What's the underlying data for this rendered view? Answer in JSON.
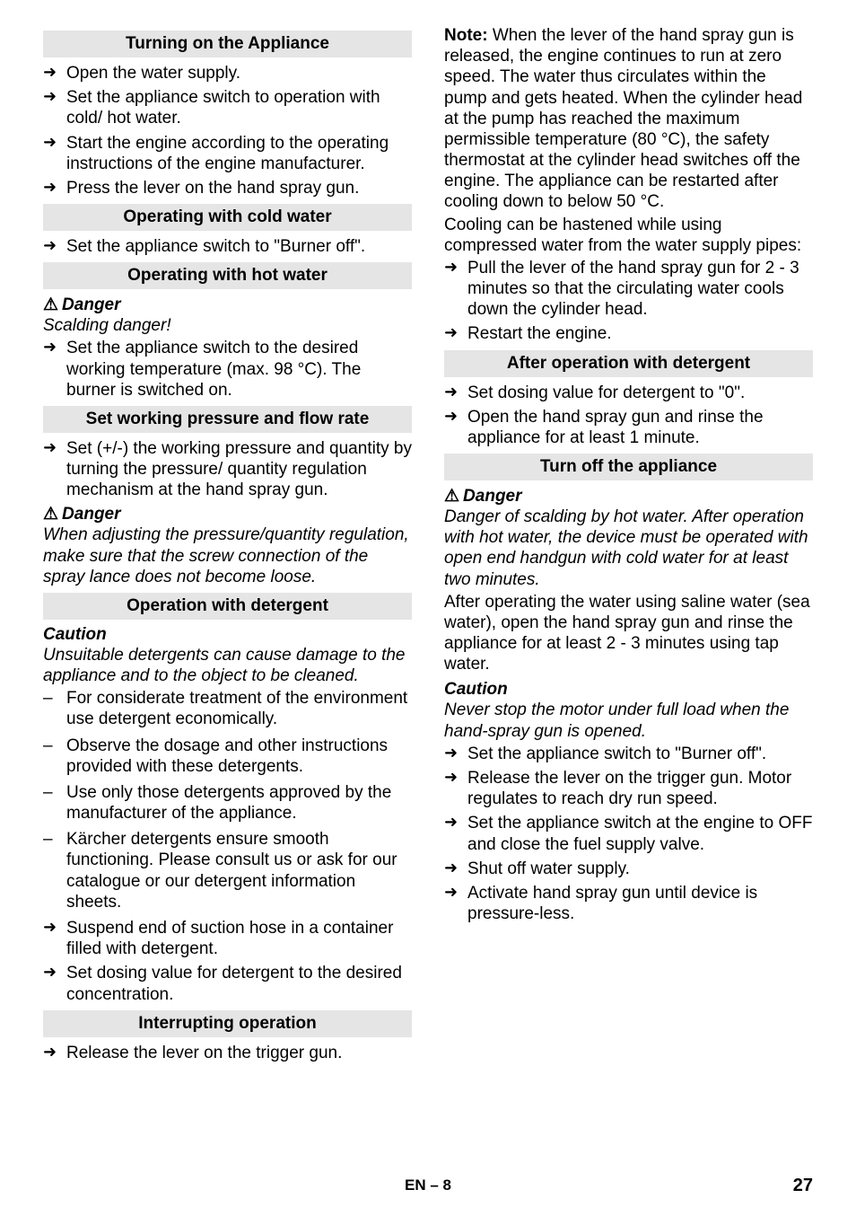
{
  "left": {
    "h1": "Turning on the Appliance",
    "a1": [
      "Open the water supply.",
      "Set the appliance switch to operation with cold/ hot water.",
      "Start the engine according to the operating instructions of the engine manufacturer.",
      "Press the lever on the hand spray gun."
    ],
    "h2": "Operating with cold water",
    "a2": [
      "Set the appliance switch to \"Burner off\"."
    ],
    "h3": "Operating with hot water",
    "danger1": "Danger",
    "scald": "Scalding danger!",
    "a3": [
      "Set the appliance switch to the desired working temperature (max. 98 °C). The burner is switched on."
    ],
    "h4": "Set working pressure and flow rate",
    "a4": [
      "Set (+/-) the working pressure and quantity by turning the pressure/ quantity regulation mechanism at the hand spray gun."
    ],
    "danger2": "Danger",
    "danger2text": "When adjusting the pressure/quantity regulation, make sure that the screw connection of the spray lance does not become loose.",
    "h5": "Operation with detergent",
    "caution1": "Caution",
    "caution1text": "Unsuitable detergents can cause damage to the appliance and to the object to be cleaned.",
    "d1": [
      "For considerate treatment of the environment use detergent economically.",
      "Observe the dosage and other instructions provided with these detergents.",
      "Use only those detergents approved by the manufacturer of the appliance.",
      "Kärcher detergents ensure smooth functioning. Please consult us or ask for our catalogue or our detergent information sheets."
    ],
    "a5": [
      "Suspend end of suction hose in a container filled with detergent."
    ]
  },
  "right": {
    "a6": [
      "Set dosing value for detergent to the desired concentration."
    ],
    "h6": "Interrupting operation",
    "a7": [
      "Release the lever on the trigger gun."
    ],
    "noteLabel": "Note:",
    "noteText": " When the lever of the hand spray gun is released, the engine continues to run at zero speed. The water thus circulates within the pump and gets heated. When the cylinder head at the pump has reached the maximum permissible temperature (80 °C), the safety thermostat at the cylinder head switches off the engine. The appliance can be restarted after cooling down to below 50 °C.",
    "cooling": "Cooling can be hastened while using compressed water from the water supply pipes:",
    "a8": [
      "Pull the lever of the hand spray gun for 2 - 3 minutes so that the circulating water cools down the cylinder head.",
      "Restart the engine."
    ],
    "h7": "After operation with detergent",
    "a9": [
      "Set dosing value for detergent to \"0\".",
      "Open the hand spray gun and rinse the appliance for at least 1 minute."
    ],
    "h8": "Turn off the appliance",
    "danger3": "Danger",
    "danger3text": "Danger of scalding by hot water. After operation with hot water, the device must be operated with open end handgun with cold water for at least two minutes.",
    "afterop": "After operating the water using saline water (sea water), open the hand spray gun and rinse the appliance for at least 2 - 3 minutes using tap water.",
    "caution2": "Caution",
    "caution2text": "Never stop the motor under full load when the hand-spray gun is opened.",
    "a10": [
      "Set the appliance switch to \"Burner off\".",
      "Release the lever on the trigger gun. Motor regulates to reach dry run speed.",
      "Set the appliance switch at the engine to OFF and close the fuel supply valve.",
      "Shut off water supply.",
      "Activate hand spray gun until device is pressure-less."
    ]
  },
  "footer": "EN – 8",
  "pagenum": "27"
}
